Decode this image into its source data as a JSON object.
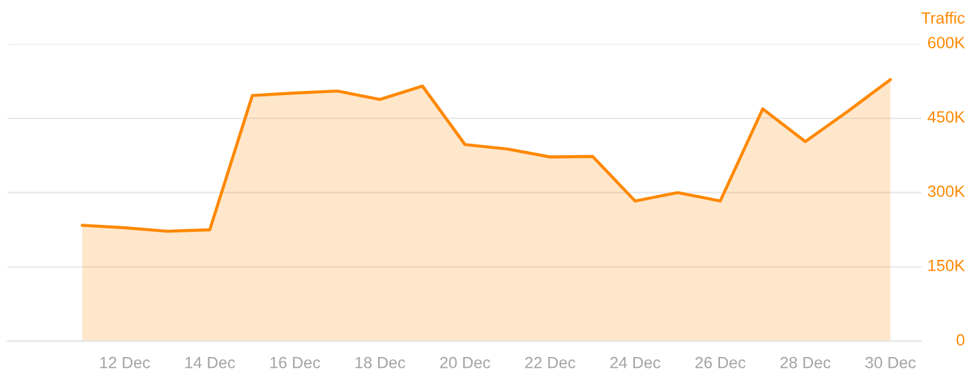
{
  "chart_data": {
    "type": "area",
    "ylabel": "Traffic",
    "categories": [
      null,
      "12 Dec",
      null,
      "14 Dec",
      null,
      "16 Dec",
      null,
      "18 Dec",
      null,
      "20 Dec",
      null,
      "22 Dec",
      null,
      "24 Dec",
      null,
      "26 Dec",
      null,
      "28 Dec",
      null,
      "30 Dec"
    ],
    "values": [
      234000,
      229000,
      222000,
      225000,
      496000,
      501000,
      505000,
      488000,
      515000,
      397000,
      388000,
      372000,
      373000,
      283000,
      300000,
      283000,
      469000,
      403000,
      464000,
      528000
    ],
    "color": "#ff8800",
    "ylim": [
      0,
      600000
    ],
    "yticks": [
      0,
      {
        "value": 150000,
        "label": "150K"
      },
      {
        "value": 300000,
        "label": "300K"
      },
      {
        "value": 450000,
        "label": "450K"
      },
      {
        "value": 600000,
        "label": "600K"
      }
    ],
    "grid": "y"
  }
}
